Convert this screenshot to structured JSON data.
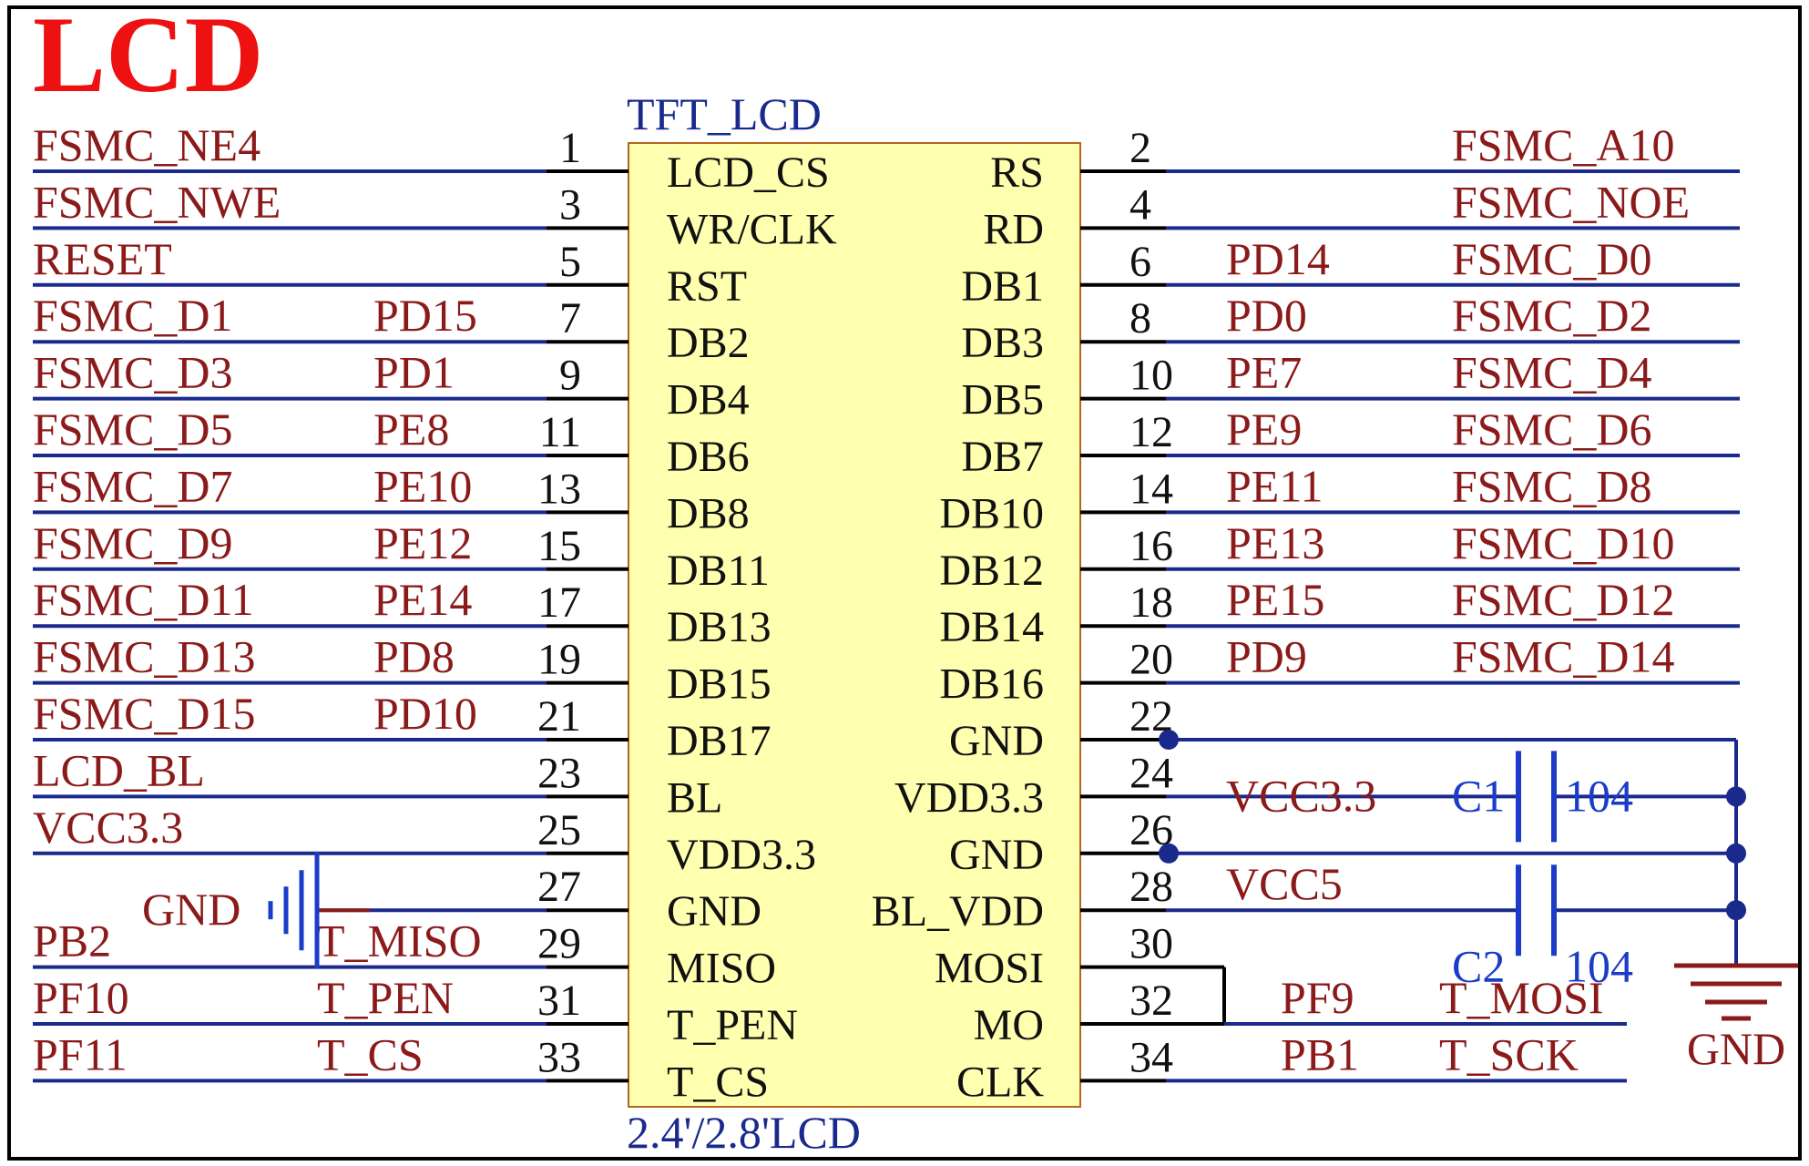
{
  "title": "LCD",
  "component": {
    "designator": "TFT_LCD",
    "comment": "2.4'/2.8'LCD"
  },
  "pins": [
    {
      "n": "1",
      "name": "LCD_CS"
    },
    {
      "n": "2",
      "name": "RS"
    },
    {
      "n": "3",
      "name": "WR/CLK"
    },
    {
      "n": "4",
      "name": "RD"
    },
    {
      "n": "5",
      "name": "RST"
    },
    {
      "n": "6",
      "name": "DB1"
    },
    {
      "n": "7",
      "name": "DB2"
    },
    {
      "n": "8",
      "name": "DB3"
    },
    {
      "n": "9",
      "name": "DB4"
    },
    {
      "n": "10",
      "name": "DB5"
    },
    {
      "n": "11",
      "name": "DB6"
    },
    {
      "n": "12",
      "name": "DB7"
    },
    {
      "n": "13",
      "name": "DB8"
    },
    {
      "n": "14",
      "name": "DB10"
    },
    {
      "n": "15",
      "name": "DB11"
    },
    {
      "n": "16",
      "name": "DB12"
    },
    {
      "n": "17",
      "name": "DB13"
    },
    {
      "n": "18",
      "name": "DB14"
    },
    {
      "n": "19",
      "name": "DB15"
    },
    {
      "n": "20",
      "name": "DB16"
    },
    {
      "n": "21",
      "name": "DB17"
    },
    {
      "n": "22",
      "name": "GND"
    },
    {
      "n": "23",
      "name": "BL"
    },
    {
      "n": "24",
      "name": "VDD3.3"
    },
    {
      "n": "25",
      "name": "VDD3.3"
    },
    {
      "n": "26",
      "name": "GND"
    },
    {
      "n": "27",
      "name": "GND"
    },
    {
      "n": "28",
      "name": "BL_VDD"
    },
    {
      "n": "29",
      "name": "MISO"
    },
    {
      "n": "30",
      "name": "MOSI"
    },
    {
      "n": "31",
      "name": "T_PEN"
    },
    {
      "n": "32",
      "name": "MO"
    },
    {
      "n": "33",
      "name": "T_CS"
    },
    {
      "n": "34",
      "name": "CLK"
    }
  ],
  "left_nets": [
    {
      "net": "FSMC_NE4",
      "port": ""
    },
    {
      "net": "FSMC_NWE",
      "port": ""
    },
    {
      "net": "RESET",
      "port": ""
    },
    {
      "net": "FSMC_D1",
      "port": "PD15"
    },
    {
      "net": "FSMC_D3",
      "port": "PD1"
    },
    {
      "net": "FSMC_D5",
      "port": "PE8"
    },
    {
      "net": "FSMC_D7",
      "port": "PE10"
    },
    {
      "net": "FSMC_D9",
      "port": "PE12"
    },
    {
      "net": "FSMC_D11",
      "port": "PE14"
    },
    {
      "net": "FSMC_D13",
      "port": "PD8"
    },
    {
      "net": "FSMC_D15",
      "port": "PD10"
    },
    {
      "net": "LCD_BL",
      "port": ""
    },
    {
      "net": "VCC3.3",
      "port": ""
    },
    {
      "net": "",
      "port": ""
    },
    {
      "net": "T_MISO",
      "port": "PB2"
    },
    {
      "net": "T_PEN",
      "port": "PF10"
    },
    {
      "net": "T_CS",
      "port": "PF11"
    }
  ],
  "right_nets": [
    {
      "net": "FSMC_A10",
      "port": ""
    },
    {
      "net": "FSMC_NOE",
      "port": ""
    },
    {
      "net": "FSMC_D0",
      "port": "PD14"
    },
    {
      "net": "FSMC_D2",
      "port": "PD0"
    },
    {
      "net": "FSMC_D4",
      "port": "PE7"
    },
    {
      "net": "FSMC_D6",
      "port": "PE9"
    },
    {
      "net": "FSMC_D8",
      "port": "PE11"
    },
    {
      "net": "FSMC_D10",
      "port": "PE13"
    },
    {
      "net": "FSMC_D12",
      "port": "PE15"
    },
    {
      "net": "FSMC_D14",
      "port": "PD9"
    },
    {
      "net": "",
      "port": ""
    },
    {
      "net": "",
      "port": "VCC3.3"
    },
    {
      "net": "",
      "port": ""
    },
    {
      "net": "",
      "port": "VCC5"
    },
    {
      "net": "",
      "port": ""
    },
    {
      "net": "T_MOSI",
      "port": "PF9"
    },
    {
      "net": "T_SCK",
      "port": "PB1"
    }
  ],
  "gnd_symbol_left": "GND",
  "gnd_symbol_right": "GND",
  "caps": [
    {
      "ref": "C1",
      "value": "104"
    },
    {
      "ref": "C2",
      "value": "104"
    }
  ],
  "colors": {
    "wire": "#1a2a8c",
    "label": "#8b1a1a",
    "title": "#ee1111",
    "pin": "#111111",
    "body_fill": "#ffffb0",
    "body_stroke": "#b5651d",
    "cap": "#1a3cc8",
    "designator": "#1a2a8c"
  }
}
